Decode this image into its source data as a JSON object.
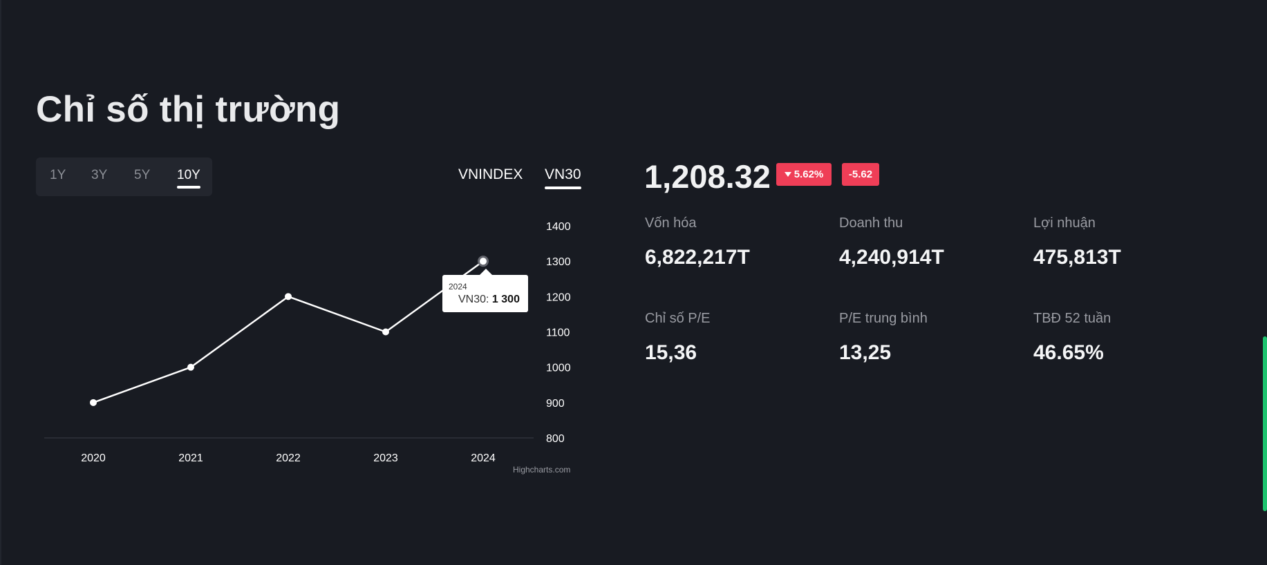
{
  "page_title": "Chỉ số thị trường",
  "range_tabs": [
    {
      "label": "1Y",
      "active": false
    },
    {
      "label": "3Y",
      "active": false
    },
    {
      "label": "5Y",
      "active": false
    },
    {
      "label": "10Y",
      "active": true
    }
  ],
  "index_tabs": [
    {
      "label": "VNINDEX",
      "active": false
    },
    {
      "label": "VN30",
      "active": true
    }
  ],
  "chart_data": {
    "type": "line",
    "series": [
      {
        "name": "VN30",
        "values": [
          900,
          1000,
          1200,
          1100,
          1300
        ]
      }
    ],
    "categories": [
      "2020",
      "2021",
      "2022",
      "2023",
      "2024"
    ],
    "ylim": [
      800,
      1400
    ],
    "yticks": [
      800,
      900,
      1000,
      1100,
      1200,
      1300,
      1400
    ],
    "y_axis_side": "right",
    "grid": false,
    "colors": {
      "line": "#ffffff",
      "baseline": "#3a3e46"
    },
    "tooltip": {
      "title": "2024",
      "series_label": "VN30",
      "value": "1 300"
    }
  },
  "credit": "Highcharts.com",
  "summary": {
    "price": "1,208.32",
    "change_percent": "5.62%",
    "change_value": "-5.62",
    "change_icon": "caret-down-icon",
    "change_color": "#ef3e57"
  },
  "stats": [
    {
      "label": "Vốn hóa",
      "value": "6,822,217T"
    },
    {
      "label": "Doanh thu",
      "value": "4,240,914T"
    },
    {
      "label": "Lợi nhuận",
      "value": "475,813T"
    },
    {
      "label": "Chỉ số P/E",
      "value": "15,36"
    },
    {
      "label": "P/E trung bình",
      "value": "13,25"
    },
    {
      "label": "TBĐ 52 tuần",
      "value": "46.65%"
    }
  ],
  "colors": {
    "background": "#181b22",
    "accent_scroll": "#1dc36e"
  }
}
